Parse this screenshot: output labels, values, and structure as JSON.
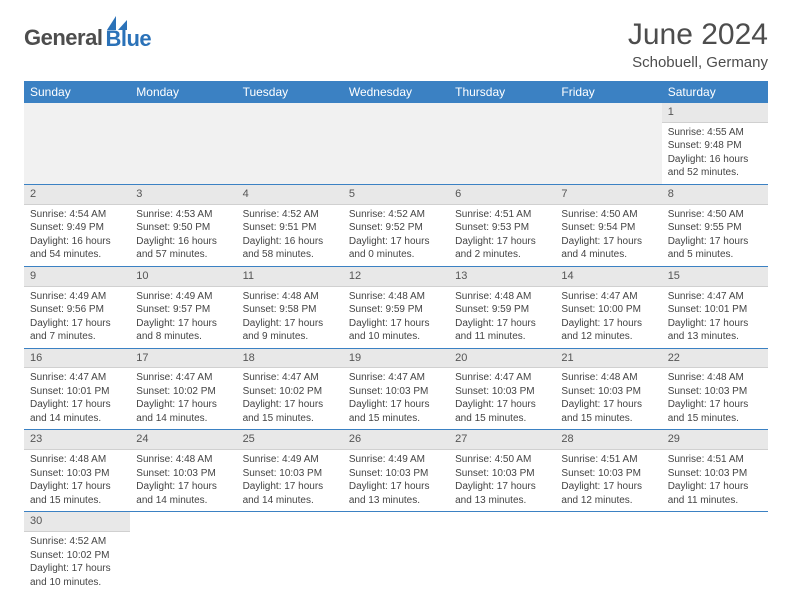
{
  "logo": {
    "general": "General",
    "blue": "Blue",
    "sail_color": "#2b72b8"
  },
  "title": "June 2024",
  "subtitle": "Schobuell, Germany",
  "weekday_header_bg": "#3b81c3",
  "weekdays": [
    "Sunday",
    "Monday",
    "Tuesday",
    "Wednesday",
    "Thursday",
    "Friday",
    "Saturday"
  ],
  "cells": [
    {
      "empty": true
    },
    {
      "empty": true
    },
    {
      "empty": true
    },
    {
      "empty": true
    },
    {
      "empty": true
    },
    {
      "empty": true
    },
    {
      "day": "1",
      "sunrise": "Sunrise: 4:55 AM",
      "sunset": "Sunset: 9:48 PM",
      "daylight": "Daylight: 16 hours and 52 minutes."
    },
    {
      "day": "2",
      "sunrise": "Sunrise: 4:54 AM",
      "sunset": "Sunset: 9:49 PM",
      "daylight": "Daylight: 16 hours and 54 minutes."
    },
    {
      "day": "3",
      "sunrise": "Sunrise: 4:53 AM",
      "sunset": "Sunset: 9:50 PM",
      "daylight": "Daylight: 16 hours and 57 minutes."
    },
    {
      "day": "4",
      "sunrise": "Sunrise: 4:52 AM",
      "sunset": "Sunset: 9:51 PM",
      "daylight": "Daylight: 16 hours and 58 minutes."
    },
    {
      "day": "5",
      "sunrise": "Sunrise: 4:52 AM",
      "sunset": "Sunset: 9:52 PM",
      "daylight": "Daylight: 17 hours and 0 minutes."
    },
    {
      "day": "6",
      "sunrise": "Sunrise: 4:51 AM",
      "sunset": "Sunset: 9:53 PM",
      "daylight": "Daylight: 17 hours and 2 minutes."
    },
    {
      "day": "7",
      "sunrise": "Sunrise: 4:50 AM",
      "sunset": "Sunset: 9:54 PM",
      "daylight": "Daylight: 17 hours and 4 minutes."
    },
    {
      "day": "8",
      "sunrise": "Sunrise: 4:50 AM",
      "sunset": "Sunset: 9:55 PM",
      "daylight": "Daylight: 17 hours and 5 minutes."
    },
    {
      "day": "9",
      "sunrise": "Sunrise: 4:49 AM",
      "sunset": "Sunset: 9:56 PM",
      "daylight": "Daylight: 17 hours and 7 minutes."
    },
    {
      "day": "10",
      "sunrise": "Sunrise: 4:49 AM",
      "sunset": "Sunset: 9:57 PM",
      "daylight": "Daylight: 17 hours and 8 minutes."
    },
    {
      "day": "11",
      "sunrise": "Sunrise: 4:48 AM",
      "sunset": "Sunset: 9:58 PM",
      "daylight": "Daylight: 17 hours and 9 minutes."
    },
    {
      "day": "12",
      "sunrise": "Sunrise: 4:48 AM",
      "sunset": "Sunset: 9:59 PM",
      "daylight": "Daylight: 17 hours and 10 minutes."
    },
    {
      "day": "13",
      "sunrise": "Sunrise: 4:48 AM",
      "sunset": "Sunset: 9:59 PM",
      "daylight": "Daylight: 17 hours and 11 minutes."
    },
    {
      "day": "14",
      "sunrise": "Sunrise: 4:47 AM",
      "sunset": "Sunset: 10:00 PM",
      "daylight": "Daylight: 17 hours and 12 minutes."
    },
    {
      "day": "15",
      "sunrise": "Sunrise: 4:47 AM",
      "sunset": "Sunset: 10:01 PM",
      "daylight": "Daylight: 17 hours and 13 minutes."
    },
    {
      "day": "16",
      "sunrise": "Sunrise: 4:47 AM",
      "sunset": "Sunset: 10:01 PM",
      "daylight": "Daylight: 17 hours and 14 minutes."
    },
    {
      "day": "17",
      "sunrise": "Sunrise: 4:47 AM",
      "sunset": "Sunset: 10:02 PM",
      "daylight": "Daylight: 17 hours and 14 minutes."
    },
    {
      "day": "18",
      "sunrise": "Sunrise: 4:47 AM",
      "sunset": "Sunset: 10:02 PM",
      "daylight": "Daylight: 17 hours and 15 minutes."
    },
    {
      "day": "19",
      "sunrise": "Sunrise: 4:47 AM",
      "sunset": "Sunset: 10:03 PM",
      "daylight": "Daylight: 17 hours and 15 minutes."
    },
    {
      "day": "20",
      "sunrise": "Sunrise: 4:47 AM",
      "sunset": "Sunset: 10:03 PM",
      "daylight": "Daylight: 17 hours and 15 minutes."
    },
    {
      "day": "21",
      "sunrise": "Sunrise: 4:48 AM",
      "sunset": "Sunset: 10:03 PM",
      "daylight": "Daylight: 17 hours and 15 minutes."
    },
    {
      "day": "22",
      "sunrise": "Sunrise: 4:48 AM",
      "sunset": "Sunset: 10:03 PM",
      "daylight": "Daylight: 17 hours and 15 minutes."
    },
    {
      "day": "23",
      "sunrise": "Sunrise: 4:48 AM",
      "sunset": "Sunset: 10:03 PM",
      "daylight": "Daylight: 17 hours and 15 minutes."
    },
    {
      "day": "24",
      "sunrise": "Sunrise: 4:48 AM",
      "sunset": "Sunset: 10:03 PM",
      "daylight": "Daylight: 17 hours and 14 minutes."
    },
    {
      "day": "25",
      "sunrise": "Sunrise: 4:49 AM",
      "sunset": "Sunset: 10:03 PM",
      "daylight": "Daylight: 17 hours and 14 minutes."
    },
    {
      "day": "26",
      "sunrise": "Sunrise: 4:49 AM",
      "sunset": "Sunset: 10:03 PM",
      "daylight": "Daylight: 17 hours and 13 minutes."
    },
    {
      "day": "27",
      "sunrise": "Sunrise: 4:50 AM",
      "sunset": "Sunset: 10:03 PM",
      "daylight": "Daylight: 17 hours and 13 minutes."
    },
    {
      "day": "28",
      "sunrise": "Sunrise: 4:51 AM",
      "sunset": "Sunset: 10:03 PM",
      "daylight": "Daylight: 17 hours and 12 minutes."
    },
    {
      "day": "29",
      "sunrise": "Sunrise: 4:51 AM",
      "sunset": "Sunset: 10:03 PM",
      "daylight": "Daylight: 17 hours and 11 minutes."
    },
    {
      "day": "30",
      "sunrise": "Sunrise: 4:52 AM",
      "sunset": "Sunset: 10:02 PM",
      "daylight": "Daylight: 17 hours and 10 minutes."
    },
    {
      "empty": true
    },
    {
      "empty": true
    },
    {
      "empty": true
    },
    {
      "empty": true
    },
    {
      "empty": true
    },
    {
      "empty": true
    }
  ]
}
